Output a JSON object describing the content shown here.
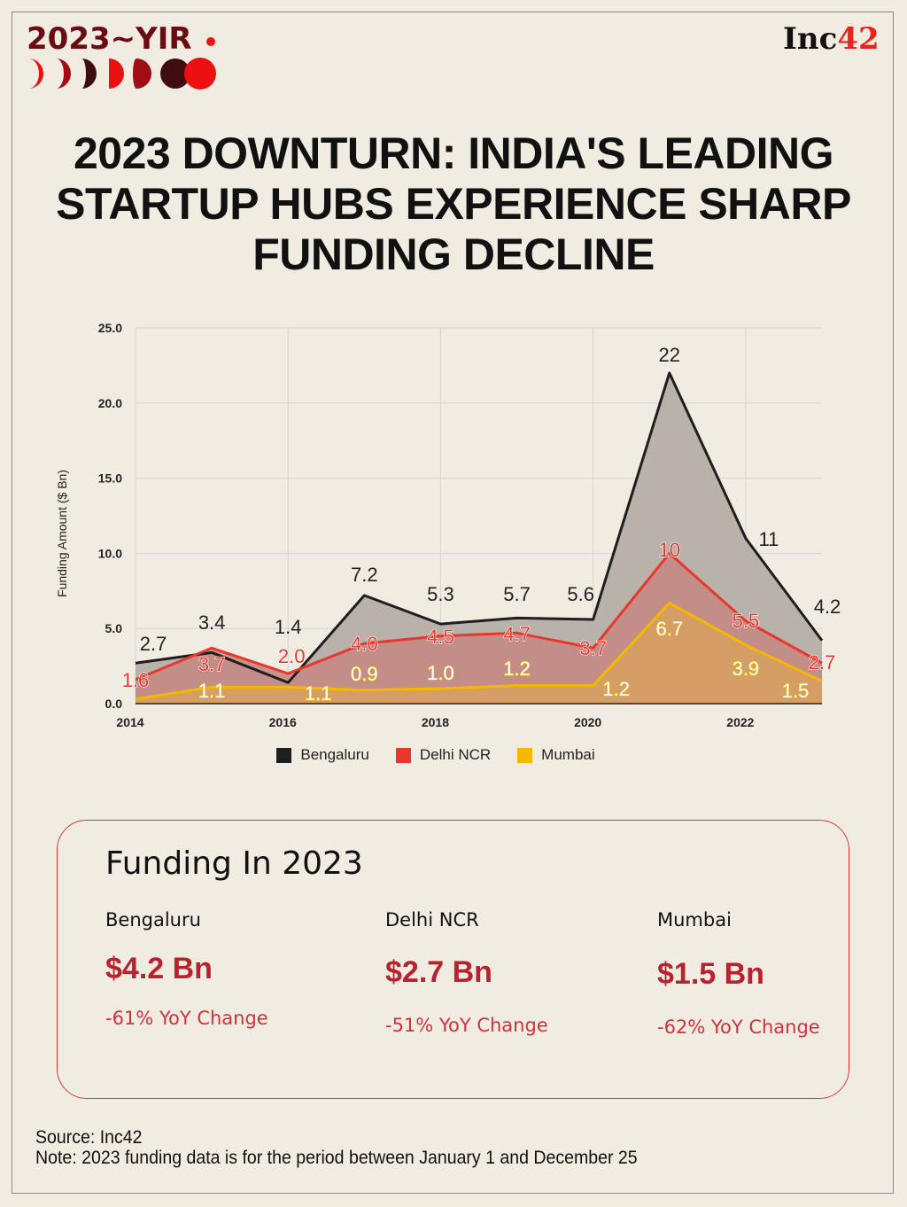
{
  "header": {
    "badge": "2023~YIR",
    "logo_text": "Inc",
    "logo_accent": "42"
  },
  "title": "2023 DOWNTURN: INDIA'S LEADING STARTUP HUBS EXPERIENCE SHARP FUNDING DECLINE",
  "chart_data": {
    "type": "area",
    "ylabel": "Funding Amount ($ Bn)",
    "xlabel": "",
    "x": [
      2014,
      2015,
      2016,
      2017,
      2018,
      2019,
      2020,
      2021,
      2022,
      2023
    ],
    "xticks": [
      "2014",
      "2016",
      "2018",
      "2020",
      "2022"
    ],
    "yticks": [
      "0.0",
      "5.0",
      "10.0",
      "15.0",
      "20.0",
      "25.0"
    ],
    "ylim": [
      0,
      25
    ],
    "grid": true,
    "legend_position": "bottom",
    "series": [
      {
        "name": "Bengaluru",
        "color": "#1e1e1e",
        "fill": "#b2aca4",
        "values": [
          2.7,
          3.4,
          1.4,
          7.2,
          5.3,
          5.7,
          5.6,
          22,
          11,
          4.2
        ],
        "labels": [
          "2.7",
          "3.4",
          "1.4",
          "7.2",
          "5.3",
          "5.7",
          "5.6",
          "22",
          "11",
          "4.2"
        ]
      },
      {
        "name": "Delhi NCR",
        "color": "#e8382e",
        "fill": "#c48a84",
        "values": [
          1.6,
          3.7,
          2.0,
          4.0,
          4.5,
          4.7,
          3.7,
          10,
          5.5,
          2.7
        ],
        "labels": [
          "1.6",
          "3.7",
          "2.0",
          "4.0",
          "4.5",
          "4.7",
          "3.7",
          "10",
          "5.5",
          "2.7"
        ]
      },
      {
        "name": "Mumbai",
        "color": "#f5b800",
        "fill": "#d6a060",
        "values": [
          0.3,
          1.1,
          1.1,
          0.9,
          1.0,
          1.2,
          1.2,
          6.7,
          3.9,
          1.5
        ],
        "labels": [
          "",
          "1.1",
          "1.1",
          "0.9",
          "1.0",
          "1.2",
          "1.2",
          "6.7",
          "3.9",
          "1.5"
        ]
      }
    ]
  },
  "summary": {
    "title": "Funding In 2023",
    "items": [
      {
        "city": "Bengaluru",
        "amount": "$4.2 Bn",
        "yoy": "-61% YoY Change"
      },
      {
        "city": "Delhi NCR",
        "amount": "$2.7 Bn",
        "yoy": "-51% YoY Change"
      },
      {
        "city": "Mumbai",
        "amount": "$1.5 Bn",
        "yoy": "-62% YoY Change"
      }
    ]
  },
  "footer": {
    "source": "Source: Inc42",
    "note": "Note: 2023 funding data is for the period between January 1 and December 25"
  }
}
